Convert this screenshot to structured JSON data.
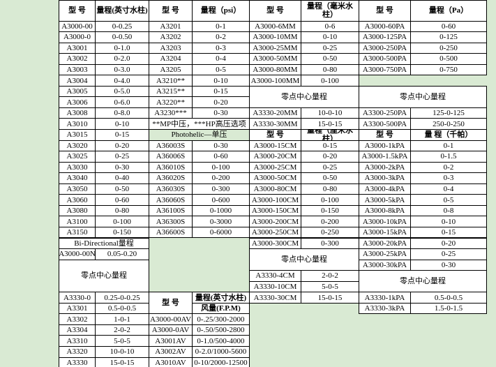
{
  "col1": {
    "header": [
      "型 号",
      "量程(英寸水柱)"
    ],
    "rows": [
      [
        "A3000-00",
        "0-0.25"
      ],
      [
        "A3000-0",
        "0-0.50"
      ],
      [
        "A3001",
        "0-1.0"
      ],
      [
        "A3002",
        "0-2.0"
      ],
      [
        "A3003",
        "0-3.0"
      ],
      [
        "A3004",
        "0-4.0"
      ],
      [
        "A3005",
        "0-5.0"
      ],
      [
        "A3006",
        "0-6.0"
      ],
      [
        "A3008",
        "0-8.0"
      ],
      [
        "A3010",
        "0-10"
      ],
      [
        "A3015",
        "0-15"
      ],
      [
        "A3020",
        "0-20"
      ],
      [
        "A3025",
        "0-25"
      ],
      [
        "A3030",
        "0-30"
      ],
      [
        "A3040",
        "0-40"
      ],
      [
        "A3050",
        "0-50"
      ],
      [
        "A3060",
        "0-60"
      ],
      [
        "A3080",
        "0-80"
      ],
      [
        "A3100",
        "0-100"
      ],
      [
        "A3150",
        "0-150"
      ]
    ],
    "bidirectional_title": "Bi-Directional量程",
    "bidirectional_rows": [
      [
        "A3000-00N",
        "0.05-0.20"
      ]
    ],
    "zero_center_title": "零点中心量程",
    "zero_center_rows": [
      [
        "A3330-0",
        "0.25-0-0.25"
      ],
      [
        "A3301",
        "0.5-0-0.5"
      ],
      [
        "A3302",
        "1-0-1"
      ],
      [
        "A3304",
        "2-0-2"
      ],
      [
        "A3310",
        "5-0-5"
      ],
      [
        "A3320",
        "10-0-10"
      ],
      [
        "A3330",
        "15-0-15"
      ]
    ]
  },
  "col2": {
    "header": [
      "型 号",
      "量程（psi）"
    ],
    "rows": [
      [
        "A3201",
        "0-1"
      ],
      [
        "A3202",
        "0-2"
      ],
      [
        "A3203",
        "0-3"
      ],
      [
        "A3204",
        "0-4"
      ],
      [
        "A3205",
        "0-5"
      ],
      [
        "A3210**",
        "0-10"
      ],
      [
        "A3215**",
        "0-15"
      ],
      [
        "A3220**",
        "0-20"
      ],
      [
        "A3230***",
        "0-30"
      ]
    ],
    "note": "**MP中压，***HP高压选项",
    "photohelic_title": "Photohelic—单压",
    "photohelic_rows": [
      [
        "A36003S",
        "0-30"
      ],
      [
        "A36006S",
        "0-60"
      ],
      [
        "A36010S",
        "0-100"
      ],
      [
        "A36020S",
        "0-200"
      ],
      [
        "A36030S",
        "0-300"
      ],
      [
        "A36060S",
        "0-600"
      ],
      [
        "A36100S",
        "0-1000"
      ],
      [
        "A36300S",
        "0-3000"
      ],
      [
        "A36600S",
        "0-6000"
      ]
    ],
    "airflow_header": [
      "型 号",
      "量程(英寸水柱)",
      "风量(F.P.M)"
    ],
    "airflow_rows": [
      [
        "A3000-00AV",
        "0-.25/300-2000"
      ],
      [
        "A3000-0AV",
        "0-.50/500-2800"
      ],
      [
        "A3001AV",
        "0-1.0/500-4000"
      ],
      [
        "A3002AV",
        "0-2.0/1000-5600"
      ],
      [
        "A3010AV",
        "0-10/2000-12500"
      ]
    ]
  },
  "col3": {
    "header": [
      "型 号",
      "量程（毫米水柱）"
    ],
    "rows": [
      [
        "A3000-6MM",
        "0-6"
      ],
      [
        "A3000-10MM",
        "0-10"
      ],
      [
        "A3000-25MM",
        "0-25"
      ],
      [
        "A3000-50MM",
        "0-50"
      ],
      [
        "A3000-80MM",
        "0-80"
      ],
      [
        "A3000-100MM",
        "0-100"
      ]
    ],
    "zero_center_title": "零点中心量程",
    "zero_center_rows": [
      [
        "A3330-20MM",
        "10-0-10"
      ],
      [
        "A3330-30MM",
        "15-0-15"
      ]
    ],
    "header2": [
      "型 号",
      "量程（厘米水柱）"
    ],
    "rows2": [
      [
        "A3000-15CM",
        "0-15"
      ],
      [
        "A3000-20CM",
        "0-20"
      ],
      [
        "A3000-25CM",
        "0-25"
      ],
      [
        "A3000-50CM",
        "0-50"
      ],
      [
        "A3000-80CM",
        "0-80"
      ],
      [
        "A3000-100CM",
        "0-100"
      ],
      [
        "A3000-150CM",
        "0-150"
      ],
      [
        "A3000-200CM",
        "0-200"
      ],
      [
        "A3000-250CM",
        "0-250"
      ],
      [
        "A3000-300CM",
        "0-300"
      ]
    ],
    "zero_center_title2": "零点中心量程",
    "zero_center_rows2": [
      [
        "A3330-4CM",
        "2-0-2"
      ],
      [
        "A3330-10CM",
        "5-0-5"
      ],
      [
        "A3330-30CM",
        "15-0-15"
      ]
    ]
  },
  "col4": {
    "header": [
      "型 号",
      "量程（Pa）"
    ],
    "rows": [
      [
        "A3000-60PA",
        "0-60"
      ],
      [
        "A3000-125PA",
        "0-125"
      ],
      [
        "A3000-250PA",
        "0-250"
      ],
      [
        "A3000-500PA",
        "0-500"
      ],
      [
        "A3000-750PA",
        "0-750"
      ]
    ],
    "zero_center_title": "零点中心量程",
    "zero_center_rows": [
      [
        "A3300-250PA",
        "125-0-125"
      ],
      [
        "A3300-500PA",
        "250-0-250"
      ]
    ],
    "header2": [
      "型 号",
      "量 程（千帕）"
    ],
    "rows2": [
      [
        "A3000-1kPA",
        "0-1"
      ],
      [
        "A3000-1.5kPA",
        "0-1.5"
      ],
      [
        "A3000-2kPA",
        "0-2"
      ],
      [
        "A3000-3kPA",
        "0-3"
      ],
      [
        "A3000-4kPA",
        "0-4"
      ],
      [
        "A3000-5kPA",
        "0-5"
      ],
      [
        "A3000-8kPA",
        "0-8"
      ],
      [
        "A3000-10kPA",
        "0-10"
      ],
      [
        "A3000-15kPA",
        "0-15"
      ],
      [
        "A3000-20kPA",
        "0-20"
      ],
      [
        "A3000-25kPA",
        "0-25"
      ],
      [
        "A3000-30kPA",
        "0-30"
      ]
    ],
    "zero_center_title2": "零点中心量程",
    "zero_center_rows2": [
      [
        "A3330-1kPA",
        "0.5-0-0.5"
      ],
      [
        "A3330-3kPA",
        "1.5-0-1.5"
      ]
    ]
  }
}
